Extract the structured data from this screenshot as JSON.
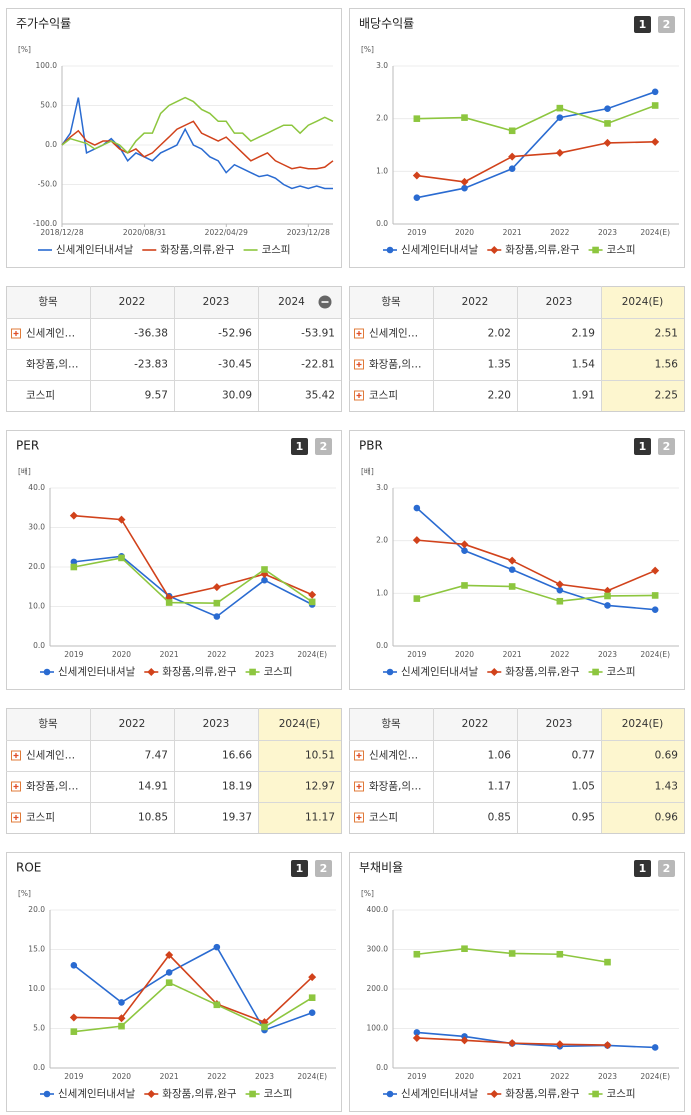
{
  "chart_data": [
    {
      "type": "line",
      "title": "주가수익률",
      "unit": "[%]",
      "x": [
        "2018/12/28",
        "2019/02/28",
        "2019/04/28",
        "2019/06/28",
        "2019/08/28",
        "2019/10/28",
        "2019/12/28",
        "2020/02/28",
        "2020/04/28",
        "2020/06/28",
        "2020/08/28",
        "2020/10/28",
        "2020/12/28",
        "2021/02/28",
        "2021/04/28",
        "2021/06/28",
        "2021/08/28",
        "2021/10/28",
        "2021/12/28",
        "2022/02/28",
        "2022/04/28",
        "2022/06/28",
        "2022/08/28",
        "2022/10/28",
        "2022/12/28",
        "2023/02/28",
        "2023/04/28",
        "2023/06/28",
        "2023/08/28",
        "2023/10/28",
        "2023/12/28",
        "2024/02/28",
        "2024/04/28",
        "2024/06/28"
      ],
      "xlim": [
        "2018/12/28",
        "2024/06/28"
      ],
      "xticks": [
        "2018/12/28",
        "2020/08/31",
        "2022/04/29",
        "2023/12/28"
      ],
      "ylim": [
        -100,
        100
      ],
      "yticks": [
        {
          "value": 100,
          "label": "100.0"
        },
        {
          "value": 50,
          "label": "50.0"
        },
        {
          "value": 0,
          "label": "0.0"
        },
        {
          "value": -50,
          "label": "-50.0"
        },
        {
          "value": -100,
          "label": "-100.0"
        }
      ],
      "grid": true,
      "series": [
        {
          "name": "신세계인터내셔날",
          "color": "#2a6bd1",
          "values": [
            0,
            15,
            60,
            -10,
            -5,
            0,
            8,
            -3,
            -20,
            -10,
            -15,
            -20,
            -10,
            -5,
            0,
            20,
            0,
            -5,
            -15,
            -20,
            -35,
            -25,
            -30,
            -35,
            -40,
            -38,
            -42,
            -50,
            -55,
            -52,
            -55,
            -52,
            -55,
            -55
          ]
        },
        {
          "name": "화장품,의류,완구",
          "color": "#d1421b",
          "values": [
            0,
            10,
            18,
            5,
            0,
            5,
            5,
            -5,
            -10,
            -5,
            -15,
            -10,
            0,
            10,
            20,
            25,
            30,
            15,
            10,
            5,
            10,
            0,
            -10,
            -20,
            -15,
            -10,
            -20,
            -25,
            -30,
            -28,
            -30,
            -30,
            -28,
            -20
          ]
        },
        {
          "name": "코스피",
          "color": "#8dc63f",
          "values": [
            0,
            8,
            5,
            2,
            -5,
            0,
            5,
            0,
            -10,
            5,
            15,
            15,
            40,
            50,
            55,
            60,
            55,
            45,
            40,
            30,
            30,
            15,
            15,
            5,
            10,
            15,
            20,
            25,
            25,
            15,
            25,
            30,
            35,
            30
          ]
        }
      ]
    },
    {
      "type": "line",
      "title": "배당수익률",
      "unit": "[%]",
      "buttons": [
        "1",
        "2"
      ],
      "categories": [
        "2019",
        "2020",
        "2021",
        "2022",
        "2023",
        "2024(E)"
      ],
      "ylim": [
        0,
        3
      ],
      "yticks": [
        {
          "value": 0,
          "label": "0.0"
        },
        {
          "value": 1,
          "label": "1.0"
        },
        {
          "value": 2,
          "label": "2.0"
        },
        {
          "value": 3,
          "label": "3.0"
        }
      ],
      "grid": true,
      "series": [
        {
          "name": "신세계인터내셔날",
          "color": "#2a6bd1",
          "marker": "circle",
          "values": [
            0.5,
            0.68,
            1.05,
            2.02,
            2.19,
            2.51
          ]
        },
        {
          "name": "화장품,의류,완구",
          "color": "#d1421b",
          "marker": "diamond",
          "values": [
            0.92,
            0.8,
            1.28,
            1.35,
            1.54,
            1.56
          ]
        },
        {
          "name": "코스피",
          "color": "#8dc63f",
          "marker": "square",
          "values": [
            2.0,
            2.02,
            1.77,
            2.2,
            1.91,
            2.25
          ]
        }
      ]
    },
    {
      "type": "line",
      "title": "PER",
      "unit": "[배]",
      "buttons": [
        "1",
        "2"
      ],
      "categories": [
        "2019",
        "2020",
        "2021",
        "2022",
        "2023",
        "2024(E)"
      ],
      "ylim": [
        0,
        40
      ],
      "yticks": [
        {
          "value": 0,
          "label": "0.0"
        },
        {
          "value": 10,
          "label": "10.0"
        },
        {
          "value": 20,
          "label": "20.0"
        },
        {
          "value": 30,
          "label": "30.0"
        },
        {
          "value": 40,
          "label": "40.0"
        }
      ],
      "grid": true,
      "series": [
        {
          "name": "신세계인터내셔날",
          "color": "#2a6bd1",
          "marker": "circle",
          "values": [
            21.3,
            22.7,
            12.6,
            7.47,
            16.66,
            10.51
          ]
        },
        {
          "name": "화장품,의류,완구",
          "color": "#d1421b",
          "marker": "diamond",
          "values": [
            33,
            32,
            12.2,
            14.91,
            18.19,
            12.97
          ]
        },
        {
          "name": "코스피",
          "color": "#8dc63f",
          "marker": "square",
          "values": [
            20,
            22.3,
            11,
            10.85,
            19.37,
            11.17
          ]
        }
      ]
    },
    {
      "type": "line",
      "title": "PBR",
      "unit": "[배]",
      "buttons": [
        "1",
        "2"
      ],
      "categories": [
        "2019",
        "2020",
        "2021",
        "2022",
        "2023",
        "2024(E)"
      ],
      "ylim": [
        0,
        3
      ],
      "yticks": [
        {
          "value": 0,
          "label": "0.0"
        },
        {
          "value": 1,
          "label": "1.0"
        },
        {
          "value": 2,
          "label": "2.0"
        },
        {
          "value": 3,
          "label": "3.0"
        }
      ],
      "grid": true,
      "series": [
        {
          "name": "신세계인터내셔날",
          "color": "#2a6bd1",
          "marker": "circle",
          "values": [
            2.62,
            1.81,
            1.45,
            1.06,
            0.77,
            0.69
          ]
        },
        {
          "name": "화장품,의류,완구",
          "color": "#d1421b",
          "marker": "diamond",
          "values": [
            2.01,
            1.93,
            1.62,
            1.17,
            1.05,
            1.43
          ]
        },
        {
          "name": "코스피",
          "color": "#8dc63f",
          "marker": "square",
          "values": [
            0.9,
            1.15,
            1.13,
            0.85,
            0.95,
            0.96
          ]
        }
      ]
    },
    {
      "type": "line",
      "title": "ROE",
      "unit": "[%]",
      "buttons": [
        "1",
        "2"
      ],
      "categories": [
        "2019",
        "2020",
        "2021",
        "2022",
        "2023",
        "2024(E)"
      ],
      "ylim": [
        0,
        20
      ],
      "yticks": [
        {
          "value": 0,
          "label": "0.0"
        },
        {
          "value": 5,
          "label": "5.0"
        },
        {
          "value": 10,
          "label": "10.0"
        },
        {
          "value": 15,
          "label": "15.0"
        },
        {
          "value": 20,
          "label": "20.0"
        }
      ],
      "grid": true,
      "series": [
        {
          "name": "신세계인터내셔날",
          "color": "#2a6bd1",
          "marker": "circle",
          "values": [
            13,
            8.3,
            12.1,
            15.3,
            4.8,
            7.0
          ]
        },
        {
          "name": "화장품,의류,완구",
          "color": "#d1421b",
          "marker": "diamond",
          "values": [
            6.4,
            6.3,
            14.3,
            8.1,
            5.8,
            11.5
          ]
        },
        {
          "name": "코스피",
          "color": "#8dc63f",
          "marker": "square",
          "values": [
            4.6,
            5.3,
            10.8,
            8.0,
            5.2,
            8.9
          ]
        }
      ]
    },
    {
      "type": "line",
      "title": "부채비율",
      "unit": "[%]",
      "buttons": [
        "1",
        "2"
      ],
      "categories": [
        "2019",
        "2020",
        "2021",
        "2022",
        "2023",
        "2024(E)"
      ],
      "ylim": [
        0,
        400
      ],
      "yticks": [
        {
          "value": 0,
          "label": "0.0"
        },
        {
          "value": 100,
          "label": "100.0"
        },
        {
          "value": 200,
          "label": "200.0"
        },
        {
          "value": 300,
          "label": "300.0"
        },
        {
          "value": 400,
          "label": "400.0"
        }
      ],
      "grid": true,
      "series": [
        {
          "name": "신세계인터내셔날",
          "color": "#2a6bd1",
          "marker": "circle",
          "values": [
            90,
            80,
            62,
            55,
            57,
            52
          ]
        },
        {
          "name": "화장품,의류,완구",
          "color": "#d1421b",
          "marker": "diamond",
          "values": [
            76,
            70,
            63,
            60,
            58,
            null
          ]
        },
        {
          "name": "코스피",
          "color": "#8dc63f",
          "marker": "square",
          "values": [
            288,
            302,
            290,
            288,
            268,
            null
          ]
        }
      ]
    }
  ],
  "tables": [
    {
      "columns": [
        "항목",
        "2022",
        "2023",
        "2024"
      ],
      "collapse": true,
      "highlight_last": false,
      "rows": [
        {
          "name": "신세계인…",
          "expandable": true,
          "values": [
            "-36.38",
            "-52.96",
            "-53.91"
          ]
        },
        {
          "name": "화장품,의…",
          "expandable": false,
          "values": [
            "-23.83",
            "-30.45",
            "-22.81"
          ]
        },
        {
          "name": "코스피",
          "expandable": false,
          "values": [
            "9.57",
            "30.09",
            "35.42"
          ]
        }
      ]
    },
    {
      "columns": [
        "항목",
        "2022",
        "2023",
        "2024(E)"
      ],
      "collapse": false,
      "highlight_last": true,
      "rows": [
        {
          "name": "신세계인…",
          "expandable": true,
          "values": [
            "2.02",
            "2.19",
            "2.51"
          ]
        },
        {
          "name": "화장품,의…",
          "expandable": true,
          "values": [
            "1.35",
            "1.54",
            "1.56"
          ]
        },
        {
          "name": "코스피",
          "expandable": true,
          "values": [
            "2.20",
            "1.91",
            "2.25"
          ]
        }
      ]
    },
    {
      "columns": [
        "항목",
        "2022",
        "2023",
        "2024(E)"
      ],
      "collapse": false,
      "highlight_last": true,
      "rows": [
        {
          "name": "신세계인…",
          "expandable": true,
          "values": [
            "7.47",
            "16.66",
            "10.51"
          ]
        },
        {
          "name": "화장품,의…",
          "expandable": true,
          "values": [
            "14.91",
            "18.19",
            "12.97"
          ]
        },
        {
          "name": "코스피",
          "expandable": true,
          "values": [
            "10.85",
            "19.37",
            "11.17"
          ]
        }
      ]
    },
    {
      "columns": [
        "항목",
        "2022",
        "2023",
        "2024(E)"
      ],
      "collapse": false,
      "highlight_last": true,
      "rows": [
        {
          "name": "신세계인…",
          "expandable": true,
          "values": [
            "1.06",
            "0.77",
            "0.69"
          ]
        },
        {
          "name": "화장품,의…",
          "expandable": true,
          "values": [
            "1.17",
            "1.05",
            "1.43"
          ]
        },
        {
          "name": "코스피",
          "expandable": true,
          "values": [
            "0.85",
            "0.95",
            "0.96"
          ]
        }
      ]
    }
  ]
}
